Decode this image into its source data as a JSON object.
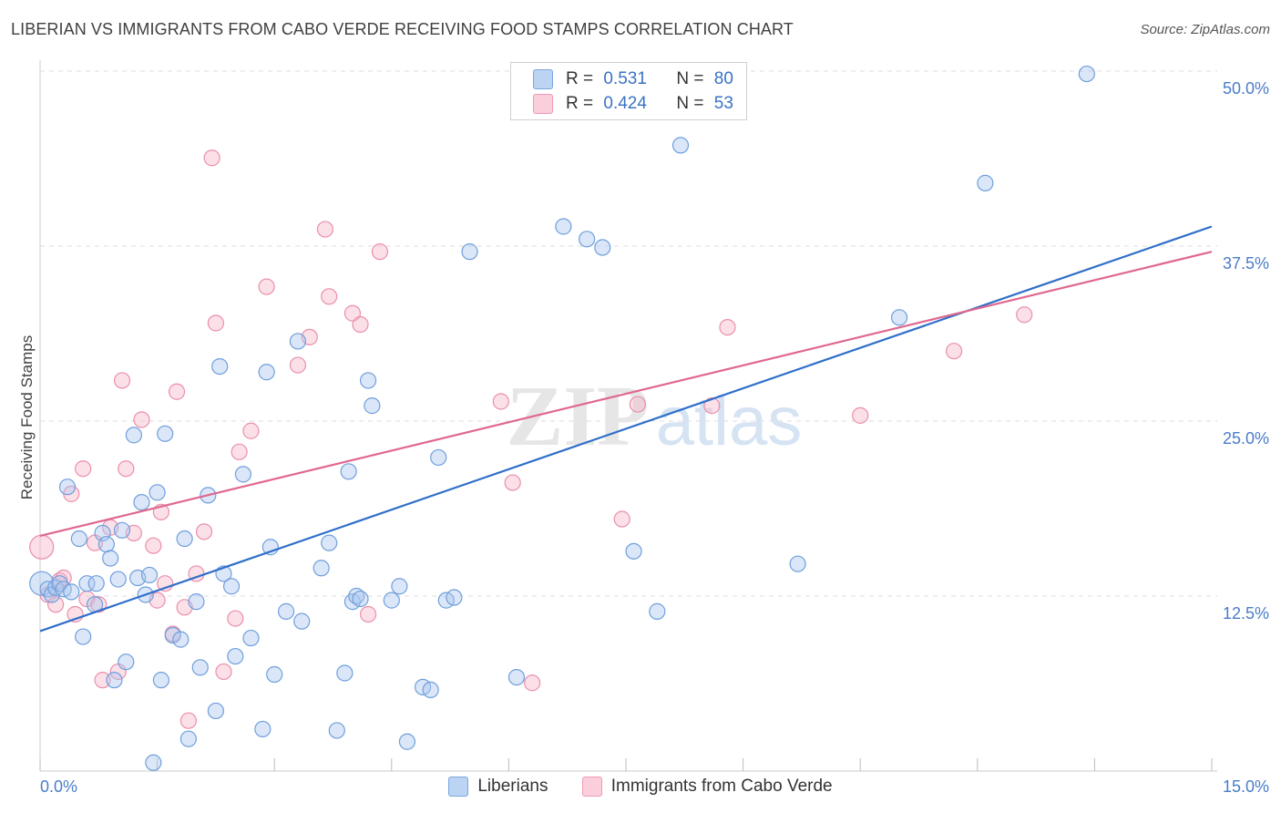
{
  "title": "LIBERIAN VS IMMIGRANTS FROM CABO VERDE RECEIVING FOOD STAMPS CORRELATION CHART",
  "source": "Source: ZipAtlas.com",
  "watermark": {
    "zip": "ZIP",
    "atlas": "atlas"
  },
  "legend": {
    "rows": [
      {
        "r_label": "R =",
        "r_value": "0.531",
        "n_label": "N =",
        "n_value": "80"
      },
      {
        "r_label": "R =",
        "r_value": "0.424",
        "n_label": "N =",
        "n_value": "53"
      }
    ]
  },
  "bottom_legend": [
    "Liberians",
    "Immigrants from Cabo Verde"
  ],
  "colors": {
    "blue_fill": "#a9c6ee",
    "blue_stroke": "#6f9fdc",
    "blue_line": "#2f6fca",
    "pink_fill": "#f7b6c9",
    "pink_stroke": "#ea8fab",
    "pink_line": "#e0678f",
    "axis_text": "#4a7cc9",
    "grid": "#dddddd"
  },
  "chart_data": {
    "type": "scatter",
    "title": "LIBERIAN VS IMMIGRANTS FROM CABO VERDE RECEIVING FOOD STAMPS CORRELATION CHART",
    "xlabel": "",
    "ylabel": "Receiving Food Stamps",
    "xlim": [
      0,
      15
    ],
    "ylim": [
      0,
      50
    ],
    "x_tick_labels": [
      "0.0%",
      "15.0%"
    ],
    "y_ticks": [
      12.5,
      25,
      37.5,
      50
    ],
    "y_tick_labels": [
      "12.5%",
      "25.0%",
      "37.5%",
      "50.0%"
    ],
    "grid": true,
    "series": [
      {
        "name": "Liberians",
        "color": "#a9c6ee",
        "trend": [
          [
            0,
            10.0
          ],
          [
            15,
            38.9
          ]
        ],
        "points": [
          [
            0.02,
            13.4
          ],
          [
            0.1,
            13.0
          ],
          [
            0.15,
            12.6
          ],
          [
            0.2,
            13.1
          ],
          [
            0.25,
            13.4
          ],
          [
            0.3,
            13.0
          ],
          [
            0.35,
            20.3
          ],
          [
            0.4,
            12.8
          ],
          [
            0.5,
            16.6
          ],
          [
            0.55,
            9.6
          ],
          [
            0.6,
            13.4
          ],
          [
            0.7,
            11.9
          ],
          [
            0.72,
            13.4
          ],
          [
            0.8,
            17.0
          ],
          [
            0.85,
            16.2
          ],
          [
            0.9,
            15.2
          ],
          [
            0.95,
            6.5
          ],
          [
            1.0,
            13.7
          ],
          [
            1.05,
            17.2
          ],
          [
            1.1,
            7.8
          ],
          [
            1.2,
            24.0
          ],
          [
            1.25,
            13.8
          ],
          [
            1.3,
            19.2
          ],
          [
            1.35,
            12.6
          ],
          [
            1.4,
            14.0
          ],
          [
            1.45,
            0.6
          ],
          [
            1.5,
            19.9
          ],
          [
            1.55,
            6.5
          ],
          [
            1.6,
            24.1
          ],
          [
            1.7,
            9.7
          ],
          [
            1.8,
            9.4
          ],
          [
            1.85,
            16.6
          ],
          [
            1.9,
            2.3
          ],
          [
            2.0,
            12.1
          ],
          [
            2.05,
            7.4
          ],
          [
            2.15,
            19.7
          ],
          [
            2.25,
            4.3
          ],
          [
            2.3,
            28.9
          ],
          [
            2.35,
            14.1
          ],
          [
            2.45,
            13.2
          ],
          [
            2.5,
            8.2
          ],
          [
            2.6,
            21.2
          ],
          [
            2.7,
            9.5
          ],
          [
            2.85,
            3.0
          ],
          [
            2.9,
            28.5
          ],
          [
            2.95,
            16.0
          ],
          [
            3.0,
            6.9
          ],
          [
            3.15,
            11.4
          ],
          [
            3.3,
            30.7
          ],
          [
            3.35,
            10.7
          ],
          [
            3.6,
            14.5
          ],
          [
            3.7,
            16.3
          ],
          [
            3.8,
            2.9
          ],
          [
            3.9,
            7.0
          ],
          [
            3.95,
            21.4
          ],
          [
            4.0,
            12.1
          ],
          [
            4.05,
            12.5
          ],
          [
            4.1,
            12.3
          ],
          [
            4.2,
            27.9
          ],
          [
            4.25,
            26.1
          ],
          [
            4.5,
            12.2
          ],
          [
            4.6,
            13.2
          ],
          [
            4.7,
            2.1
          ],
          [
            4.9,
            6.0
          ],
          [
            5.0,
            5.8
          ],
          [
            5.1,
            22.4
          ],
          [
            5.2,
            12.2
          ],
          [
            5.3,
            12.4
          ],
          [
            5.5,
            37.1
          ],
          [
            6.1,
            6.7
          ],
          [
            6.7,
            38.9
          ],
          [
            7.0,
            38.0
          ],
          [
            7.2,
            37.4
          ],
          [
            7.6,
            15.7
          ],
          [
            7.9,
            11.4
          ],
          [
            8.2,
            44.7
          ],
          [
            9.7,
            14.8
          ],
          [
            11.0,
            32.4
          ],
          [
            12.1,
            42.0
          ],
          [
            13.4,
            49.8
          ]
        ]
      },
      {
        "name": "Immigrants from Cabo Verde",
        "color": "#f7b6c9",
        "trend": [
          [
            0,
            16.8
          ],
          [
            15,
            37.1
          ]
        ],
        "points": [
          [
            0.02,
            16.0
          ],
          [
            0.1,
            12.6
          ],
          [
            0.2,
            11.9
          ],
          [
            0.25,
            13.6
          ],
          [
            0.3,
            13.8
          ],
          [
            0.4,
            19.8
          ],
          [
            0.45,
            11.2
          ],
          [
            0.55,
            21.6
          ],
          [
            0.6,
            12.3
          ],
          [
            0.7,
            16.3
          ],
          [
            0.75,
            11.9
          ],
          [
            0.8,
            6.5
          ],
          [
            0.9,
            17.4
          ],
          [
            1.0,
            7.1
          ],
          [
            1.05,
            27.9
          ],
          [
            1.1,
            21.6
          ],
          [
            1.2,
            17.0
          ],
          [
            1.3,
            25.1
          ],
          [
            1.45,
            16.1
          ],
          [
            1.5,
            12.2
          ],
          [
            1.55,
            18.5
          ],
          [
            1.6,
            13.4
          ],
          [
            1.7,
            9.8
          ],
          [
            1.75,
            27.1
          ],
          [
            1.85,
            11.7
          ],
          [
            1.9,
            3.6
          ],
          [
            2.0,
            14.1
          ],
          [
            2.1,
            17.1
          ],
          [
            2.2,
            43.8
          ],
          [
            2.25,
            32.0
          ],
          [
            2.35,
            7.1
          ],
          [
            2.5,
            10.9
          ],
          [
            2.55,
            22.8
          ],
          [
            2.7,
            24.3
          ],
          [
            2.9,
            34.6
          ],
          [
            3.3,
            29.0
          ],
          [
            3.45,
            31.0
          ],
          [
            3.65,
            38.7
          ],
          [
            3.7,
            33.9
          ],
          [
            4.0,
            32.7
          ],
          [
            4.1,
            31.9
          ],
          [
            4.2,
            11.2
          ],
          [
            4.35,
            37.1
          ],
          [
            5.9,
            26.4
          ],
          [
            6.05,
            20.6
          ],
          [
            6.3,
            6.3
          ],
          [
            7.45,
            18.0
          ],
          [
            7.65,
            26.2
          ],
          [
            8.6,
            26.1
          ],
          [
            8.8,
            31.7
          ],
          [
            10.5,
            25.4
          ],
          [
            11.7,
            30.0
          ],
          [
            12.6,
            32.6
          ]
        ]
      }
    ]
  }
}
